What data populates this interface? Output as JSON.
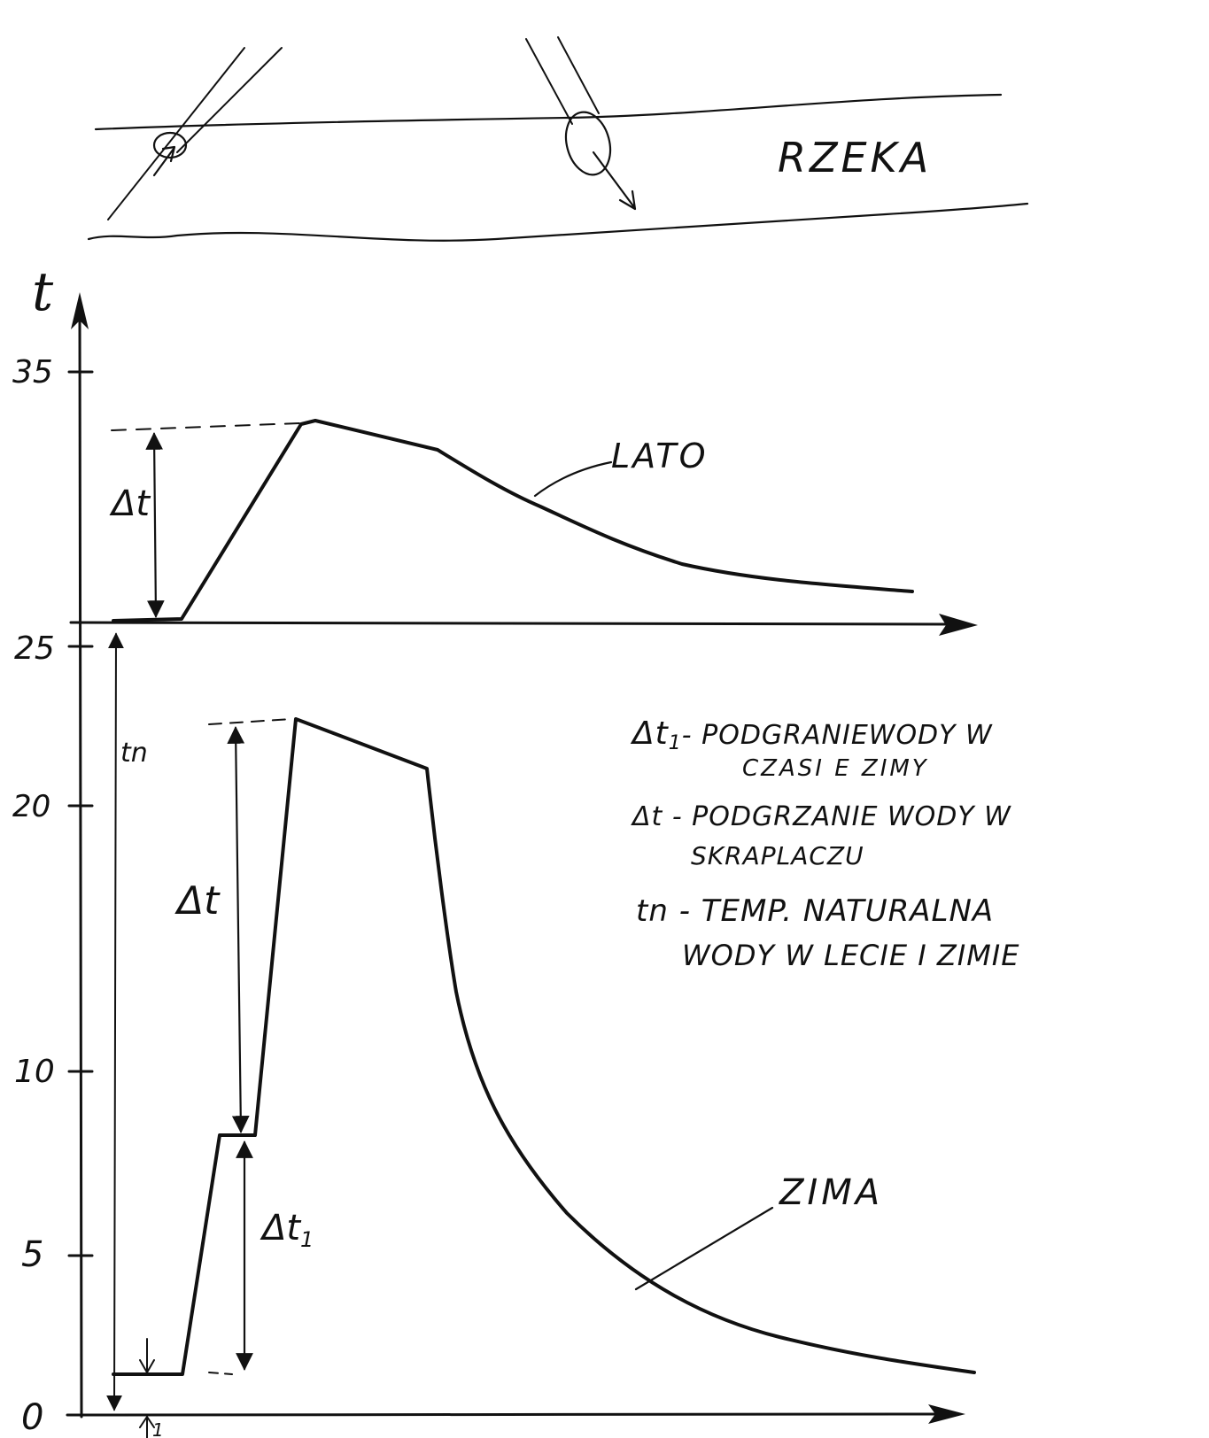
{
  "river_label": "RZEKA",
  "axis": {
    "y_label": "t",
    "ticks": [
      "35",
      "25",
      "20",
      "10",
      "5",
      "0"
    ]
  },
  "curves": {
    "summer_label": "LATO",
    "winter_label": "ZIMA"
  },
  "annotations": {
    "delta_t_summer": "Δt",
    "delta_t_winter": "Δt",
    "delta_t1": "Δt",
    "delta_t1_sub": "1",
    "tn": "tn",
    "bottom_delta_sub": "1"
  },
  "legend": {
    "line1": "Δt",
    "line1_sub": "1",
    "line1_rest": "- PODGRANIEWODY W",
    "line2": "CZASI E ZIMY",
    "line3": "Δt - PODGRZANIE WODY W",
    "line4": "SKRAPLACZU",
    "line5": "tn - TEMP. NATURALNA",
    "line6": "WODY W LECIE I ZIMIE"
  },
  "colors": {
    "ink": "#111111",
    "paper": "#ffffff"
  }
}
